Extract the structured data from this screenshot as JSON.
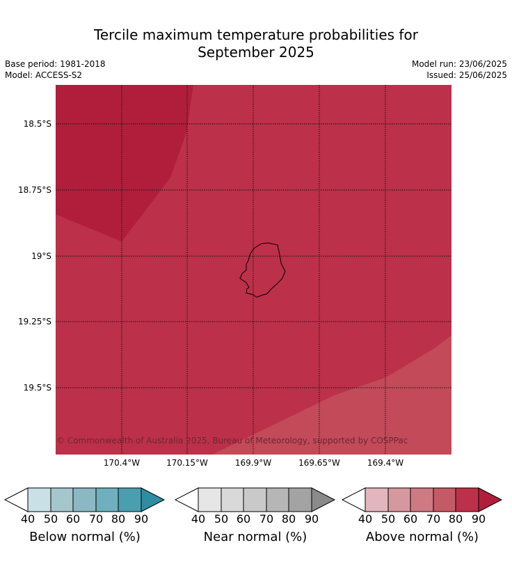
{
  "title_line1": "Tercile maximum temperature probabilities for",
  "title_line2": "September 2025",
  "meta_left": [
    "Base period: 1981-2018",
    "Model: ACCESS-S2"
  ],
  "meta_right": [
    "Model run: 23/06/2025",
    "Issued: 25/06/2025"
  ],
  "map": {
    "lat_labels": [
      "18.5°S",
      "18.75°S",
      "19°S",
      "19.25°S",
      "19.5°S"
    ],
    "lon_labels": [
      "170.4°W",
      "170.15°W",
      "169.9°W",
      "169.65°W",
      "169.4°W"
    ],
    "copyright": "© Commonwealth of Australia 2025, Bureau of Meteorology, supported by COSPPac",
    "zone_colors": {
      "above_90": "#b01e3b",
      "above_80": "#bc3049",
      "above_70": "#c24a59"
    }
  },
  "colorbars": [
    {
      "title": "Below normal (%)",
      "ticks": [
        "40",
        "50",
        "60",
        "70",
        "80",
        "90"
      ],
      "colors": [
        "#c9e0e7",
        "#a6c6cd",
        "#8bb8c3",
        "#70b0be",
        "#4b9eb0",
        "#2e8da2"
      ]
    },
    {
      "title": "Near normal (%)",
      "ticks": [
        "40",
        "50",
        "60",
        "70",
        "80",
        "90"
      ],
      "colors": [
        "#e6e6e6",
        "#d9d9d9",
        "#c9c9c9",
        "#b6b6b6",
        "#a3a3a3",
        "#8a8a8a"
      ]
    },
    {
      "title": "Above normal (%)",
      "ticks": [
        "40",
        "50",
        "60",
        "70",
        "80",
        "90"
      ],
      "colors": [
        "#e2b6bc",
        "#d6989f",
        "#ce7a83",
        "#c55a67",
        "#bc3049",
        "#b01e3b"
      ]
    }
  ]
}
